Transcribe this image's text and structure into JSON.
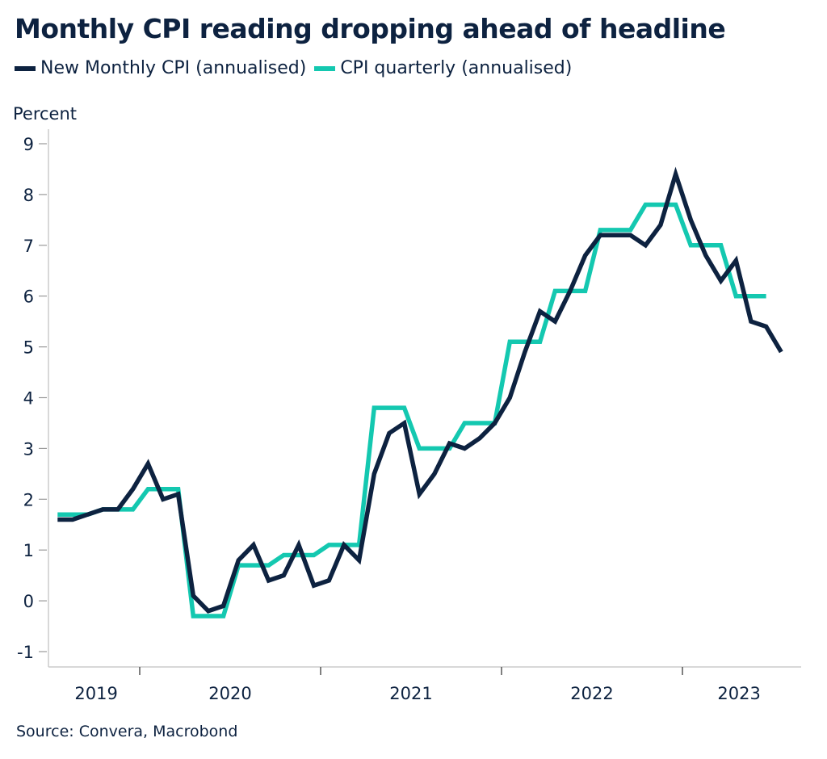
{
  "chart_data": {
    "type": "line",
    "title": "Monthly CPI reading dropping ahead of headline",
    "ylabel": "Percent",
    "xlabel": "",
    "ylim": [
      -1,
      9
    ],
    "yticks": [
      -1,
      0,
      1,
      2,
      3,
      4,
      5,
      6,
      7,
      8,
      9
    ],
    "xticks": [
      "2019",
      "2020",
      "2021",
      "2022",
      "2023"
    ],
    "x_start": "2019-07",
    "grid": false,
    "legend_position": "top-left",
    "source": "Source: Convera, Macrobond",
    "series": [
      {
        "name": "New Monthly CPI (annualised)",
        "color": "#0d2240",
        "style": "line",
        "values": [
          1.6,
          1.6,
          1.7,
          1.8,
          1.8,
          2.2,
          2.7,
          2.0,
          2.1,
          0.1,
          -0.2,
          -0.1,
          0.8,
          1.1,
          0.4,
          0.5,
          1.1,
          0.3,
          0.4,
          1.1,
          0.8,
          2.5,
          3.3,
          3.5,
          2.1,
          2.5,
          3.1,
          3.0,
          3.2,
          3.5,
          4.0,
          4.9,
          5.7,
          5.5,
          6.1,
          6.8,
          7.2,
          7.2,
          7.2,
          7.0,
          7.4,
          8.4,
          7.5,
          6.8,
          6.3,
          6.7,
          5.5,
          5.4,
          4.9
        ]
      },
      {
        "name": "CPI quarterly (annualised)",
        "color": "#14c8b0",
        "style": "step",
        "values": [
          1.7,
          1.7,
          1.7,
          1.8,
          1.8,
          1.8,
          2.2,
          2.2,
          2.2,
          -0.3,
          -0.3,
          -0.3,
          0.7,
          0.7,
          0.7,
          0.9,
          0.9,
          0.9,
          1.1,
          1.1,
          1.1,
          3.8,
          3.8,
          3.8,
          3.0,
          3.0,
          3.0,
          3.5,
          3.5,
          3.5,
          5.1,
          5.1,
          5.1,
          6.1,
          6.1,
          6.1,
          7.3,
          7.3,
          7.3,
          7.8,
          7.8,
          7.8,
          7.0,
          7.0,
          7.0,
          6.0,
          6.0,
          6.0
        ]
      }
    ]
  }
}
